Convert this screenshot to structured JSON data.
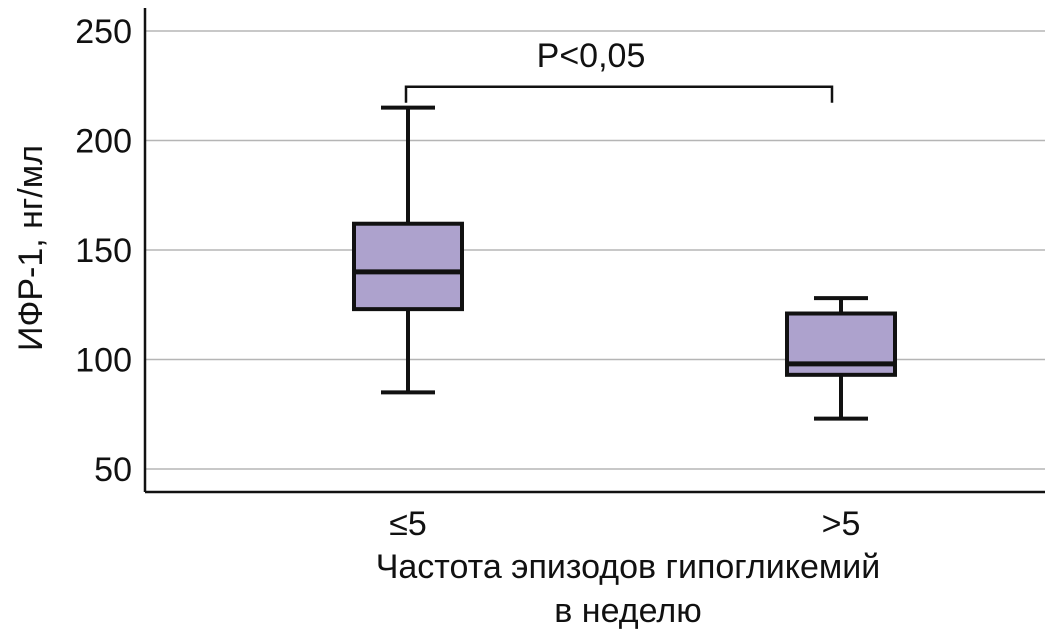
{
  "chart_data": {
    "type": "box",
    "title": "",
    "ylabel": "ИФР-1, нг/мл",
    "xlabel_line1": "Частота эпизодов гипогликемий",
    "xlabel_line2": "в неделю",
    "ylim": [
      40,
      260
    ],
    "yticks": [
      50,
      100,
      150,
      200,
      250
    ],
    "grid": true,
    "categories": [
      "≤5",
      ">5"
    ],
    "boxes": [
      {
        "category": "≤5",
        "min": 85,
        "q1": 123,
        "median": 140,
        "q3": 162,
        "max": 215
      },
      {
        "category": ">5",
        "min": 73,
        "q1": 93,
        "median": 98,
        "q3": 121,
        "max": 128
      }
    ],
    "annotation": {
      "text": "P<0,05",
      "between": [
        "≤5",
        ">5"
      ],
      "y": 225
    },
    "colors": {
      "box_fill": "#ada2cd",
      "stroke": "#111111",
      "grid": "#b5b5b5"
    }
  }
}
